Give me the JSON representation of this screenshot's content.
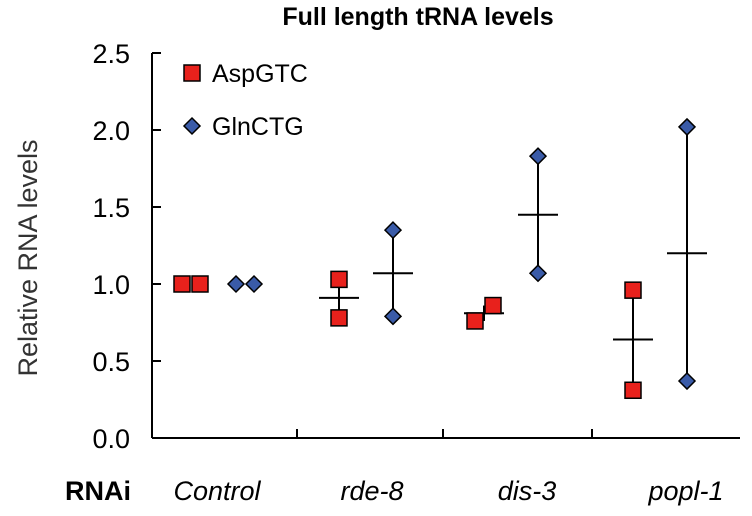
{
  "chart_data": {
    "type": "scatter",
    "title": "Full length tRNA levels",
    "ylabel": "Relative RNA levels",
    "xlabel": "RNAi",
    "ylim": [
      0,
      2.5
    ],
    "yticks": [
      "0.0",
      "0.5",
      "1.0",
      "1.5",
      "2.0",
      "2.5"
    ],
    "categories": [
      "Control",
      "rde-8",
      "dis-3",
      "popl-1"
    ],
    "series": [
      {
        "name": "AspGTC",
        "marker": "square",
        "color": "#e8211c",
        "points": [
          [
            1.0,
            1.0
          ],
          [
            1.03,
            0.78
          ],
          [
            0.76,
            0.86
          ],
          [
            0.96,
            0.31
          ]
        ],
        "means": [
          1.0,
          0.91,
          0.81,
          0.64
        ]
      },
      {
        "name": "GlnCTG",
        "marker": "diamond",
        "color": "#3a5ba8",
        "points": [
          [
            1.0,
            1.0
          ],
          [
            1.35,
            0.79
          ],
          [
            1.83,
            1.07
          ],
          [
            2.02,
            0.37
          ]
        ],
        "means": [
          1.0,
          1.07,
          1.45,
          1.2
        ]
      }
    ],
    "legend_position": "top-left"
  }
}
